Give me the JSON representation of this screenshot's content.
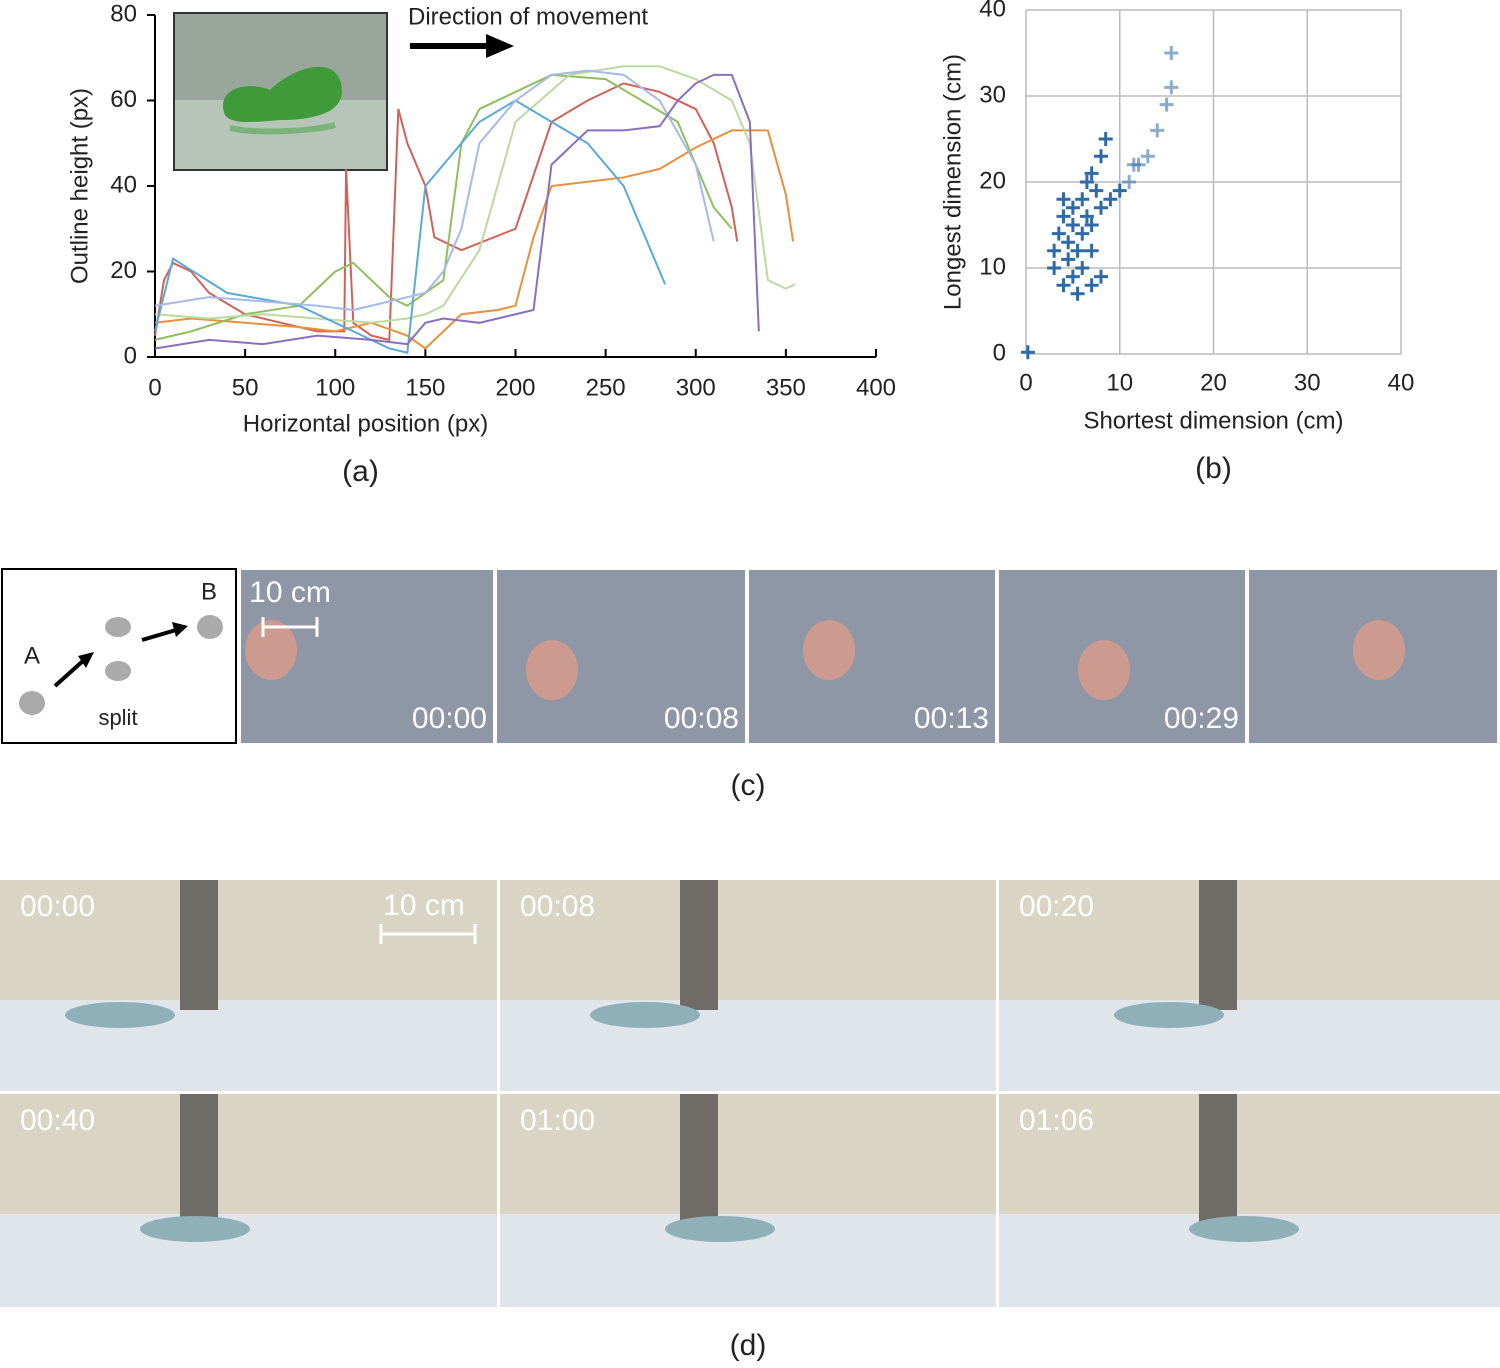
{
  "chart_data": [
    {
      "type": "line",
      "caption": "(a)",
      "xlabel": "Horizontal position (px)",
      "ylabel": "Outline height (px)",
      "annotation": "Direction of movement",
      "xlim": [
        0,
        400
      ],
      "xticks": [
        0,
        50,
        100,
        150,
        200,
        250,
        300,
        350,
        400
      ],
      "ylim": [
        0,
        80
      ],
      "yticks": [
        0,
        20,
        40,
        60,
        80
      ],
      "grid": false,
      "series": [
        {
          "color": "#d0625a",
          "x": [
            0,
            5,
            10,
            20,
            30,
            50,
            70,
            90,
            105,
            106,
            110,
            120,
            130,
            135,
            140,
            150,
            155,
            170,
            200,
            220,
            240,
            260,
            280,
            300,
            310,
            320,
            323
          ],
          "values": [
            5,
            18,
            22,
            20,
            15,
            10,
            8,
            6,
            6,
            44,
            8,
            5,
            4,
            58,
            50,
            40,
            28,
            25,
            30,
            55,
            60,
            64,
            62,
            58,
            50,
            35,
            27
          ]
        },
        {
          "color": "#e8913a",
          "x": [
            0,
            20,
            50,
            80,
            100,
            120,
            140,
            150,
            170,
            190,
            200,
            210,
            220,
            240,
            260,
            280,
            300,
            320,
            340,
            350,
            354
          ],
          "values": [
            8,
            9,
            8,
            7,
            6,
            8,
            5,
            2,
            10,
            11,
            12,
            28,
            40,
            41,
            42,
            44,
            49,
            53,
            53,
            38,
            27
          ]
        },
        {
          "color": "#8fbf5e",
          "x": [
            0,
            20,
            50,
            80,
            100,
            110,
            120,
            130,
            140,
            160,
            170,
            180,
            200,
            220,
            250,
            270,
            290,
            300,
            310,
            320
          ],
          "values": [
            4,
            6,
            10,
            12,
            20,
            22,
            18,
            14,
            12,
            18,
            50,
            58,
            62,
            66,
            65,
            60,
            55,
            45,
            35,
            30
          ]
        },
        {
          "color": "#bcd9a0",
          "x": [
            0,
            30,
            60,
            90,
            120,
            140,
            150,
            160,
            180,
            200,
            230,
            260,
            280,
            300,
            320,
            330,
            340,
            350,
            355
          ],
          "values": [
            10,
            9,
            10,
            9,
            8,
            9,
            10,
            12,
            25,
            55,
            66,
            68,
            68,
            65,
            60,
            50,
            18,
            16,
            17
          ]
        },
        {
          "color": "#5aa9d6",
          "x": [
            0,
            10,
            40,
            80,
            100,
            120,
            130,
            140,
            150,
            160,
            180,
            200,
            220,
            240,
            260,
            270,
            280,
            283
          ],
          "values": [
            6,
            23,
            15,
            12,
            8,
            4,
            2,
            1,
            40,
            45,
            55,
            60,
            55,
            50,
            40,
            30,
            20,
            17
          ]
        },
        {
          "color": "#a6b9e8",
          "x": [
            0,
            30,
            60,
            90,
            110,
            130,
            150,
            160,
            170,
            180,
            200,
            220,
            240,
            260,
            280,
            300,
            310
          ],
          "values": [
            12,
            14,
            13,
            12,
            11,
            13,
            15,
            20,
            30,
            50,
            60,
            66,
            67,
            66,
            60,
            45,
            27
          ]
        },
        {
          "color": "#8a6fbf",
          "x": [
            0,
            30,
            60,
            90,
            120,
            140,
            150,
            160,
            180,
            200,
            210,
            220,
            240,
            260,
            280,
            290,
            300,
            310,
            320,
            330,
            335
          ],
          "values": [
            2,
            4,
            3,
            5,
            4,
            3,
            8,
            9,
            8,
            10,
            11,
            45,
            53,
            53,
            54,
            60,
            64,
            66,
            66,
            55,
            6
          ]
        }
      ]
    },
    {
      "type": "scatter",
      "caption": "(b)",
      "xlabel": "Shortest dimension (cm)",
      "ylabel": "Longest dimension (cm)",
      "xlim": [
        0,
        40
      ],
      "xticks": [
        0,
        10,
        20,
        30,
        40
      ],
      "ylim": [
        0,
        40
      ],
      "yticks": [
        0,
        10,
        20,
        30,
        40
      ],
      "grid": true,
      "series": [
        {
          "color": "#2d6aa6",
          "x": [
            0.2,
            3,
            3,
            3.5,
            4,
            4,
            4,
            4.5,
            4.5,
            5,
            5,
            5,
            5.5,
            5.5,
            6,
            6,
            6,
            6.5,
            6.5,
            7,
            7,
            7,
            7,
            7.5,
            8,
            8,
            8,
            8.5,
            9,
            10,
            11,
            11.5,
            12,
            13,
            14,
            15,
            15.5,
            15.5
          ],
          "values": [
            0.2,
            10,
            12,
            14,
            8,
            16,
            18,
            11,
            13,
            9,
            15,
            17,
            7,
            12,
            10,
            14,
            18,
            16,
            20,
            8,
            12,
            15,
            21,
            19,
            9,
            17,
            23,
            25,
            18,
            19,
            20,
            22,
            22,
            23,
            26,
            29,
            31,
            35
          ]
        }
      ]
    }
  ],
  "panel_c": {
    "caption": "(c)",
    "diagram": {
      "start": "A",
      "end": "B",
      "label": "split"
    },
    "scale_bar": "10 cm",
    "timestamps": [
      "00:00",
      "00:08",
      "00:13",
      "00:29"
    ]
  },
  "panel_d": {
    "caption": "(d)",
    "scale_bar": "10 cm",
    "timestamps": [
      "00:00",
      "00:08",
      "00:20",
      "00:40",
      "01:00",
      "01:06"
    ]
  }
}
